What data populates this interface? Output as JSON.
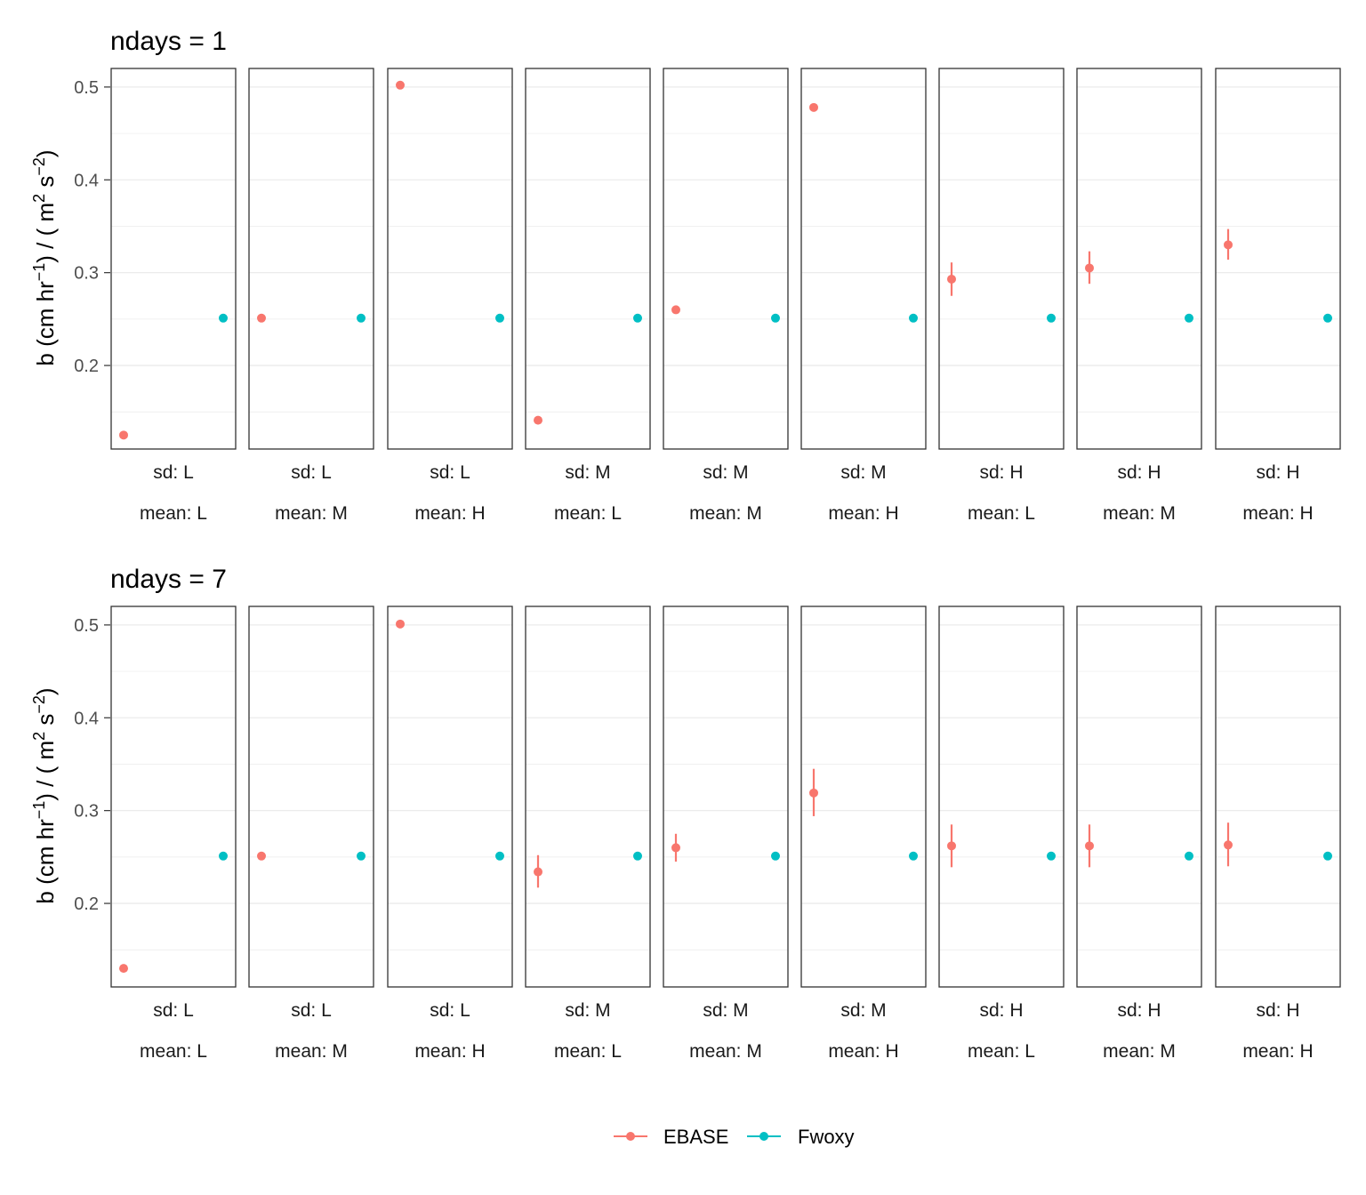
{
  "chart_data": [
    {
      "type": "scatter",
      "title": "ndays = 1",
      "ylabel": "b (cm hr^-1) / ( m^2 s^-2)",
      "ylim": [
        0.11,
        0.52
      ],
      "yticks": [
        0.2,
        0.3,
        0.4,
        0.5
      ],
      "ytick_labels": [
        "0.2",
        "0.3",
        "0.4",
        "0.5"
      ],
      "x_categories": [
        "EBASE",
        "Fwoxy"
      ],
      "grid": true,
      "facets": [
        {
          "sd": "sd: L",
          "mean": "mean: L",
          "EBASE": {
            "y": 0.125,
            "lo": null,
            "hi": null
          },
          "Fwoxy": {
            "y": 0.251
          }
        },
        {
          "sd": "sd: L",
          "mean": "mean: M",
          "EBASE": {
            "y": 0.251,
            "lo": null,
            "hi": null
          },
          "Fwoxy": {
            "y": 0.251
          }
        },
        {
          "sd": "sd: L",
          "mean": "mean: H",
          "EBASE": {
            "y": 0.502,
            "lo": null,
            "hi": null
          },
          "Fwoxy": {
            "y": 0.251
          }
        },
        {
          "sd": "sd: M",
          "mean": "mean: L",
          "EBASE": {
            "y": 0.141,
            "lo": null,
            "hi": null
          },
          "Fwoxy": {
            "y": 0.251
          }
        },
        {
          "sd": "sd: M",
          "mean": "mean: M",
          "EBASE": {
            "y": 0.26,
            "lo": null,
            "hi": null
          },
          "Fwoxy": {
            "y": 0.251
          }
        },
        {
          "sd": "sd: M",
          "mean": "mean: H",
          "EBASE": {
            "y": 0.478,
            "lo": null,
            "hi": null
          },
          "Fwoxy": {
            "y": 0.251
          }
        },
        {
          "sd": "sd: H",
          "mean": "mean: L",
          "EBASE": {
            "y": 0.293,
            "lo": 0.275,
            "hi": 0.311
          },
          "Fwoxy": {
            "y": 0.251
          }
        },
        {
          "sd": "sd: H",
          "mean": "mean: M",
          "EBASE": {
            "y": 0.305,
            "lo": 0.288,
            "hi": 0.323
          },
          "Fwoxy": {
            "y": 0.251
          }
        },
        {
          "sd": "sd: H",
          "mean": "mean: H",
          "EBASE": {
            "y": 0.33,
            "lo": 0.314,
            "hi": 0.347
          },
          "Fwoxy": {
            "y": 0.251
          }
        }
      ]
    },
    {
      "type": "scatter",
      "title": "ndays = 7",
      "ylabel": "b (cm hr^-1) / ( m^2 s^-2)",
      "ylim": [
        0.11,
        0.52
      ],
      "yticks": [
        0.2,
        0.3,
        0.4,
        0.5
      ],
      "ytick_labels": [
        "0.2",
        "0.3",
        "0.4",
        "0.5"
      ],
      "x_categories": [
        "EBASE",
        "Fwoxy"
      ],
      "grid": true,
      "facets": [
        {
          "sd": "sd: L",
          "mean": "mean: L",
          "EBASE": {
            "y": 0.13,
            "lo": null,
            "hi": null
          },
          "Fwoxy": {
            "y": 0.251
          }
        },
        {
          "sd": "sd: L",
          "mean": "mean: M",
          "EBASE": {
            "y": 0.251,
            "lo": null,
            "hi": null
          },
          "Fwoxy": {
            "y": 0.251
          }
        },
        {
          "sd": "sd: L",
          "mean": "mean: H",
          "EBASE": {
            "y": 0.501,
            "lo": null,
            "hi": null
          },
          "Fwoxy": {
            "y": 0.251
          }
        },
        {
          "sd": "sd: M",
          "mean": "mean: L",
          "EBASE": {
            "y": 0.234,
            "lo": 0.217,
            "hi": 0.252
          },
          "Fwoxy": {
            "y": 0.251
          }
        },
        {
          "sd": "sd: M",
          "mean": "mean: M",
          "EBASE": {
            "y": 0.26,
            "lo": 0.245,
            "hi": 0.275
          },
          "Fwoxy": {
            "y": 0.251
          }
        },
        {
          "sd": "sd: M",
          "mean": "mean: H",
          "EBASE": {
            "y": 0.319,
            "lo": 0.294,
            "hi": 0.345
          },
          "Fwoxy": {
            "y": 0.251
          }
        },
        {
          "sd": "sd: H",
          "mean": "mean: L",
          "EBASE": {
            "y": 0.262,
            "lo": 0.239,
            "hi": 0.285
          },
          "Fwoxy": {
            "y": 0.251
          }
        },
        {
          "sd": "sd: H",
          "mean": "mean: M",
          "EBASE": {
            "y": 0.262,
            "lo": 0.239,
            "hi": 0.285
          },
          "Fwoxy": {
            "y": 0.251
          }
        },
        {
          "sd": "sd: H",
          "mean": "mean: H",
          "EBASE": {
            "y": 0.263,
            "lo": 0.24,
            "hi": 0.287
          },
          "Fwoxy": {
            "y": 0.251
          }
        }
      ]
    }
  ],
  "legend": {
    "position": "bottom",
    "items": [
      {
        "label": "EBASE",
        "color": "#F8766D"
      },
      {
        "label": "Fwoxy",
        "color": "#00BFC4"
      }
    ]
  }
}
